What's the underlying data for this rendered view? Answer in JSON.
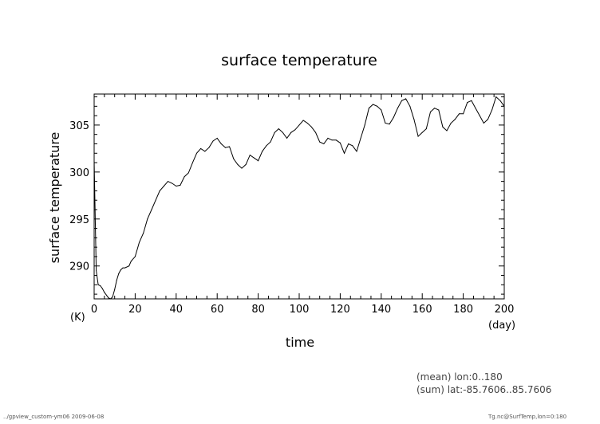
{
  "chart_data": {
    "type": "line",
    "title": "surface temperature",
    "xlabel": "time",
    "ylabel": "surface temperature",
    "x_unit": "(day)",
    "y_unit": "(K)",
    "xlim": [
      0,
      200
    ],
    "ylim": [
      286.5,
      308.3
    ],
    "x_ticks": [
      0,
      20,
      40,
      60,
      80,
      100,
      120,
      140,
      160,
      180,
      200
    ],
    "y_ticks": [
      290,
      295,
      300,
      305
    ],
    "grid": false,
    "legend": "none",
    "series": [
      {
        "x": [
          0,
          1,
          2,
          3,
          4,
          5,
          6,
          7,
          8,
          9,
          10,
          11,
          12,
          13,
          14,
          15,
          17,
          18,
          20,
          22,
          24,
          26,
          28,
          30,
          32,
          34,
          36,
          38,
          40,
          42,
          44,
          46,
          48,
          50,
          52,
          54,
          56,
          58,
          60,
          62,
          64,
          66,
          68,
          70,
          72,
          74,
          76,
          78,
          80,
          82,
          84,
          86,
          88,
          90,
          92,
          94,
          96,
          98,
          100,
          102,
          104,
          106,
          108,
          110,
          112,
          114,
          116,
          118,
          120,
          122,
          124,
          126,
          128,
          130,
          132,
          134,
          136,
          138,
          140,
          142,
          144,
          146,
          148,
          150,
          152,
          154,
          156,
          158,
          160,
          162,
          164,
          166,
          168,
          170,
          172,
          174,
          176,
          178,
          180,
          182,
          184,
          186,
          188,
          190,
          192,
          194,
          196,
          198,
          200
        ],
        "y": [
          301.2,
          289.5,
          288.0,
          287.9,
          287.6,
          287.2,
          286.9,
          286.6,
          286.5,
          286.7,
          287.5,
          288.5,
          289.2,
          289.6,
          289.8,
          289.8,
          290.0,
          290.5,
          291.0,
          292.5,
          293.5,
          295.0,
          296.0,
          297.0,
          298.0,
          298.5,
          299.0,
          298.8,
          298.5,
          298.6,
          299.5,
          299.9,
          301.0,
          302.0,
          302.5,
          302.2,
          302.6,
          303.3,
          303.6,
          303.0,
          302.6,
          302.7,
          301.4,
          300.8,
          300.4,
          300.8,
          301.8,
          301.5,
          301.2,
          302.2,
          302.8,
          303.2,
          304.2,
          304.6,
          304.2,
          303.6,
          304.2,
          304.5,
          305.0,
          305.5,
          305.2,
          304.8,
          304.2,
          303.2,
          303.0,
          303.6,
          303.4,
          303.4,
          303.1,
          302.0,
          303.0,
          302.8,
          302.2,
          303.6,
          305.0,
          306.8,
          307.2,
          307.0,
          306.6,
          305.2,
          305.1,
          305.8,
          306.8,
          307.6,
          307.8,
          307.0,
          305.6,
          303.8,
          304.2,
          304.6,
          306.4,
          306.8,
          306.6,
          304.8,
          304.4,
          305.2,
          305.6,
          306.2,
          306.2,
          307.4,
          307.6,
          306.8,
          306.0,
          305.2,
          305.6,
          306.6,
          308.0,
          307.6,
          307.0
        ]
      }
    ]
  },
  "notes": {
    "mean": "(mean) lon:0..180",
    "sum": "(sum) lat:-85.7606..85.7606",
    "footer_left": "../gpview_custom-ym06  2009-06-08",
    "footer_right": "Tg.nc@SurfTemp,lon=0:180"
  }
}
